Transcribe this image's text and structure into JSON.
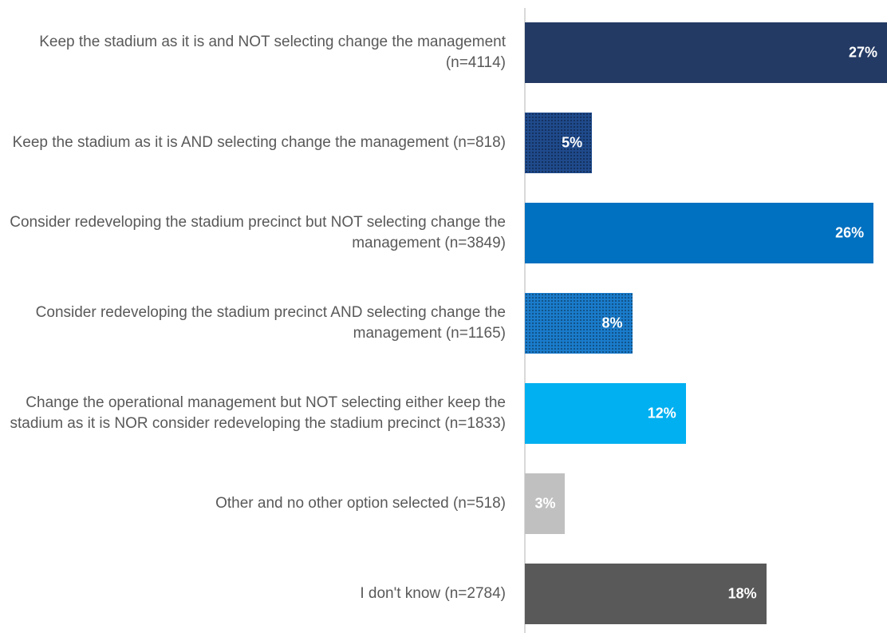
{
  "chart_data": {
    "type": "hbar",
    "categories": [
      "Keep the stadium as it is and NOT selecting change the management (n=4114)",
      "Keep the stadium as it is AND selecting change the management (n=818)",
      "Consider redeveloping the stadium precinct but NOT selecting change the management (n=3849)",
      "Consider redeveloping the stadium precinct AND selecting change the management (n=1165)",
      "Change the operational management but NOT selecting either keep the stadium as it is NOR consider redeveloping the stadium precinct (n=1833)",
      "Other and no other option selected (n=518)",
      "I don't know (n=2784)"
    ],
    "values": [
      27,
      5,
      26,
      8,
      12,
      3,
      18
    ],
    "value_labels": [
      "27%",
      "5%",
      "26%",
      "8%",
      "12%",
      "3%",
      "18%"
    ],
    "colors": [
      "#233a64",
      "#1f4a8c",
      "#0070c0",
      "#1a7ccc",
      "#00b0f0",
      "#c0c0c0",
      "#595959"
    ],
    "textured": [
      false,
      true,
      false,
      true,
      false,
      false,
      false
    ],
    "xlim": [
      0,
      27
    ]
  }
}
